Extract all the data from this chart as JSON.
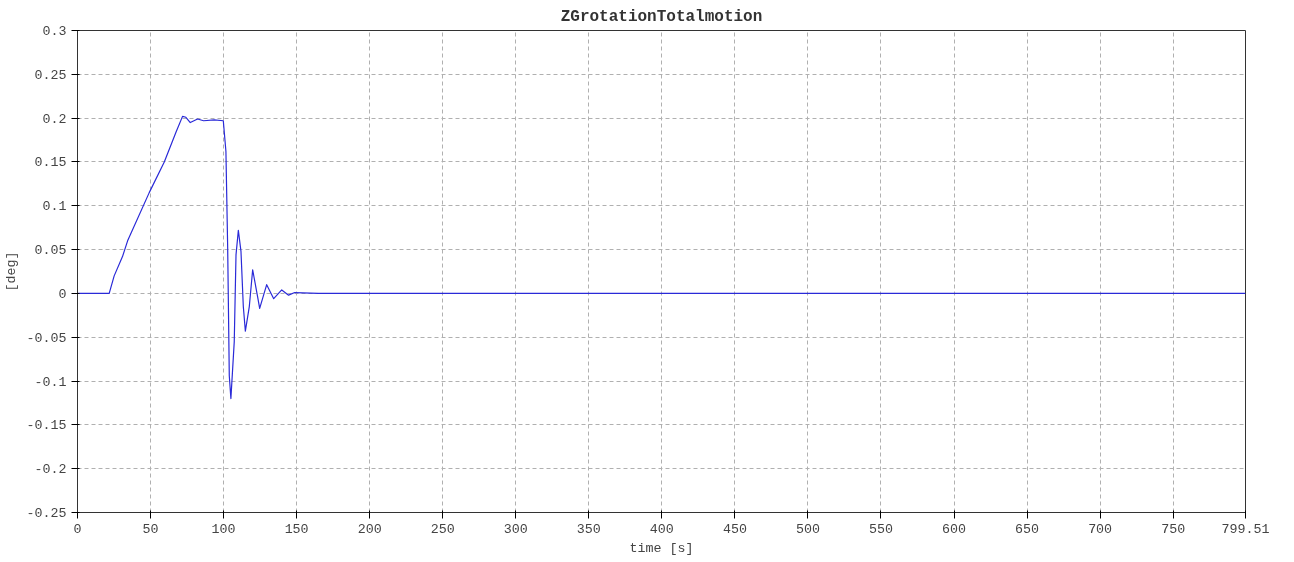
{
  "chart_data": {
    "type": "line",
    "title": "ZGrotationTotalmotion",
    "xlabel": "time [s]",
    "ylabel": "[deg]",
    "x": [
      0,
      21.7,
      25.1,
      30.8,
      34.3,
      49.1,
      59.4,
      67.4,
      71.9,
      74.2,
      77.2,
      82.2,
      86.3,
      93.6,
      99.8,
      101.6,
      102.8,
      103.9,
      105.0,
      107.3,
      108.5,
      110.1,
      111.9,
      113.5,
      114.9,
      117.6,
      119.9,
      123.3,
      124.7,
      129.5,
      134.3,
      139.8,
      144.5,
      148.7,
      165,
      799.51
    ],
    "series": [
      {
        "color": "#2a2ad8",
        "values": [
          0,
          0,
          0.02,
          0.042,
          0.06,
          0.115,
          0.15,
          0.184,
          0.202,
          0.201,
          0.195,
          0.199,
          0.197,
          0.198,
          0.197,
          0.162,
          0.052,
          -0.094,
          -0.12,
          -0.055,
          0.044,
          0.072,
          0.048,
          -0.015,
          -0.043,
          -0.015,
          0.027,
          -0.004,
          -0.017,
          0.01,
          -0.006,
          0.004,
          -0.002,
          0.001,
          0,
          0
        ]
      }
    ],
    "xlim": [
      0,
      799.51
    ],
    "ylim": [
      -0.25,
      0.3
    ],
    "xticks": [
      0,
      50,
      100,
      150,
      200,
      250,
      300,
      350,
      400,
      450,
      500,
      550,
      600,
      650,
      700,
      750,
      799.51
    ],
    "yticks": [
      -0.25,
      -0.2,
      -0.15,
      -0.1,
      -0.05,
      0,
      0.05,
      0.1,
      0.15,
      0.2,
      0.25,
      0.3
    ],
    "grid": true,
    "marker": "none",
    "line_style": "solid"
  }
}
